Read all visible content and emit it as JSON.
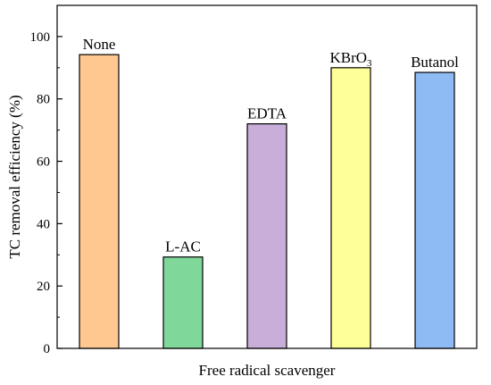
{
  "chart_data": {
    "type": "bar",
    "title": "",
    "xlabel": "Free radical scavenger",
    "ylabel": "TC removal efficiency (%)",
    "ylim": [
      0,
      110
    ],
    "yticks": [
      0,
      20,
      40,
      60,
      80,
      100
    ],
    "categories": [
      "None",
      "L-AC",
      "EDTA",
      "KBrO3",
      "Butanol"
    ],
    "bar_labels": [
      {
        "text": "None"
      },
      {
        "text": "L-AC"
      },
      {
        "text": "EDTA"
      },
      {
        "text": "KBrO",
        "subscript": "3"
      },
      {
        "text": "Butanol"
      }
    ],
    "values": [
      94.2,
      29.3,
      72.0,
      90.0,
      88.5
    ],
    "colors": [
      "#FFC891",
      "#7FD89A",
      "#C8AED8",
      "#FFFF99",
      "#8FBBF5"
    ],
    "grid": false,
    "legend": "none"
  }
}
